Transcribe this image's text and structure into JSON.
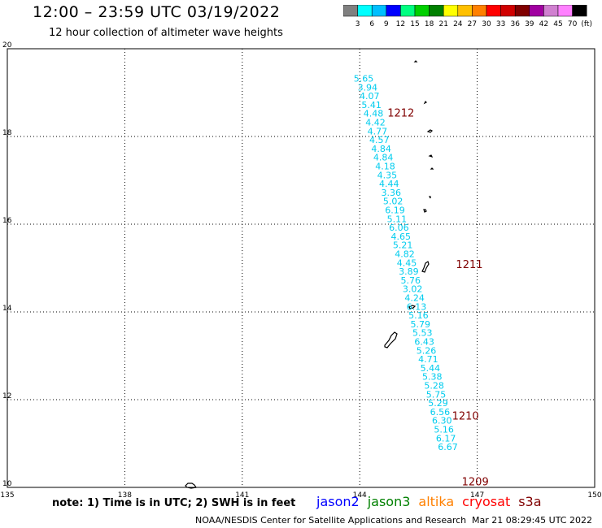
{
  "header": {
    "title": "12:00 – 23:59 UTC 03/19/2022",
    "subtitle": "12 hour collection of altimeter wave heights"
  },
  "colorbar": {
    "colors": [
      "#808080",
      "#00ffff",
      "#00bfff",
      "#0000ff",
      "#00ff80",
      "#00d000",
      "#008000",
      "#ffff00",
      "#ffc000",
      "#ff8000",
      "#ff0000",
      "#d00000",
      "#800000",
      "#a000a0",
      "#d080d0",
      "#ff80ff",
      "#000000"
    ],
    "labels": [
      "3",
      "6",
      "9",
      "12",
      "15",
      "18",
      "21",
      "24",
      "27",
      "30",
      "33",
      "36",
      "39",
      "42",
      "45",
      "70",
      "(ft)"
    ]
  },
  "chart_data": {
    "type": "scatter",
    "xlim": [
      135,
      150
    ],
    "ylim": [
      10,
      20
    ],
    "xticks": [
      "135",
      "138",
      "141",
      "144",
      "147",
      "150"
    ],
    "yticks": [
      "10",
      "12",
      "14",
      "16",
      "18",
      "20"
    ],
    "grid": true,
    "swh_points": [
      {
        "lon": 144.1,
        "lat": 19.25,
        "label": "5.65"
      },
      {
        "lon": 144.2,
        "lat": 19.05,
        "label": "3.94"
      },
      {
        "lon": 144.25,
        "lat": 18.85,
        "label": "4.07"
      },
      {
        "lon": 144.3,
        "lat": 18.65,
        "label": "5.41"
      },
      {
        "lon": 144.35,
        "lat": 18.45,
        "label": "4.48"
      },
      {
        "lon": 144.4,
        "lat": 18.25,
        "label": "4.42"
      },
      {
        "lon": 144.45,
        "lat": 18.05,
        "label": "4.77"
      },
      {
        "lon": 144.5,
        "lat": 17.85,
        "label": "4.57"
      },
      {
        "lon": 144.55,
        "lat": 17.65,
        "label": "4.84"
      },
      {
        "lon": 144.6,
        "lat": 17.45,
        "label": "4.84"
      },
      {
        "lon": 144.65,
        "lat": 17.25,
        "label": "4.18"
      },
      {
        "lon": 144.7,
        "lat": 17.05,
        "label": "4.35"
      },
      {
        "lon": 144.75,
        "lat": 16.85,
        "label": "4.44"
      },
      {
        "lon": 144.8,
        "lat": 16.65,
        "label": "3.36"
      },
      {
        "lon": 144.85,
        "lat": 16.45,
        "label": "5.02"
      },
      {
        "lon": 144.9,
        "lat": 16.25,
        "label": "6.19"
      },
      {
        "lon": 144.95,
        "lat": 16.05,
        "label": "5.11"
      },
      {
        "lon": 145.0,
        "lat": 15.85,
        "label": "6.06"
      },
      {
        "lon": 145.05,
        "lat": 15.65,
        "label": "4.65"
      },
      {
        "lon": 145.1,
        "lat": 15.45,
        "label": "5.21"
      },
      {
        "lon": 145.15,
        "lat": 15.25,
        "label": "4.82"
      },
      {
        "lon": 145.2,
        "lat": 15.05,
        "label": "4.45"
      },
      {
        "lon": 145.25,
        "lat": 14.85,
        "label": "3.89"
      },
      {
        "lon": 145.3,
        "lat": 14.65,
        "label": "5.76"
      },
      {
        "lon": 145.35,
        "lat": 14.45,
        "label": "3.02"
      },
      {
        "lon": 145.4,
        "lat": 14.25,
        "label": "4.24"
      },
      {
        "lon": 145.45,
        "lat": 14.05,
        "label": "6.13"
      },
      {
        "lon": 145.5,
        "lat": 13.85,
        "label": "5.16"
      },
      {
        "lon": 145.55,
        "lat": 13.65,
        "label": "5.79"
      },
      {
        "lon": 145.6,
        "lat": 13.45,
        "label": "5.53"
      },
      {
        "lon": 145.65,
        "lat": 13.25,
        "label": "6.43"
      },
      {
        "lon": 145.7,
        "lat": 13.05,
        "label": "5.26"
      },
      {
        "lon": 145.75,
        "lat": 12.85,
        "label": "4.71"
      },
      {
        "lon": 145.8,
        "lat": 12.65,
        "label": "5.44"
      },
      {
        "lon": 145.85,
        "lat": 12.45,
        "label": "5.38"
      },
      {
        "lon": 145.9,
        "lat": 12.25,
        "label": "5.28"
      },
      {
        "lon": 145.95,
        "lat": 12.05,
        "label": "5.75"
      },
      {
        "lon": 146.0,
        "lat": 11.85,
        "label": "5.29"
      },
      {
        "lon": 146.05,
        "lat": 11.65,
        "label": "6.56"
      },
      {
        "lon": 146.1,
        "lat": 11.45,
        "label": "6.30"
      },
      {
        "lon": 146.15,
        "lat": 11.25,
        "label": "5.16"
      },
      {
        "lon": 146.2,
        "lat": 11.05,
        "label": "6.17"
      },
      {
        "lon": 146.25,
        "lat": 10.85,
        "label": "6.67"
      }
    ],
    "time_labels": [
      {
        "lon": 145.05,
        "lat": 18.45,
        "label": "1212"
      },
      {
        "lon": 146.8,
        "lat": 15.0,
        "label": "1211"
      },
      {
        "lon": 146.7,
        "lat": 11.55,
        "label": "1210"
      },
      {
        "lon": 146.95,
        "lat": 10.05,
        "label": "1209"
      }
    ],
    "label_color": "#00ccee",
    "time_color": "#800000"
  },
  "footer": {
    "note": "note: 1) Time is in UTC; 2) SWH is in feet",
    "satellites": [
      {
        "name": "jason2",
        "color": "#0000ff"
      },
      {
        "name": "jason3",
        "color": "#008000"
      },
      {
        "name": "altika",
        "color": "#ff8000"
      },
      {
        "name": "cryosat",
        "color": "#ff0000"
      },
      {
        "name": "s3a",
        "color": "#800000"
      }
    ],
    "credit": "NOAA/NESDIS Center for Satellite Applications and Research",
    "timestamp": "Mar 21 08:29:45 UTC 2022"
  }
}
